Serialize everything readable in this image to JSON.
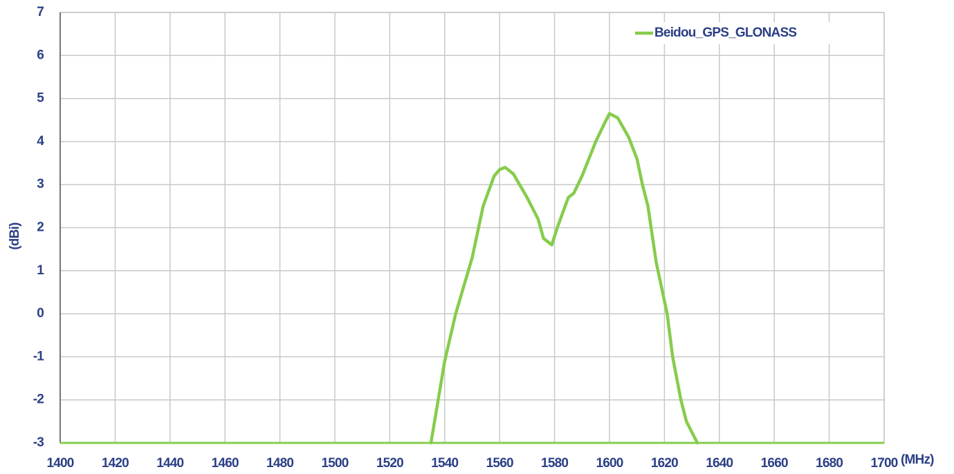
{
  "chart_data": {
    "type": "line",
    "x_label": "(MHz)",
    "y_label": "(dBi)",
    "xlim": [
      1400,
      1700
    ],
    "xticks": [
      1400,
      1420,
      1440,
      1460,
      1480,
      1500,
      1520,
      1540,
      1560,
      1580,
      1600,
      1620,
      1640,
      1660,
      1680,
      1700
    ],
    "ylim": [
      -3,
      7
    ],
    "yticks": [
      -3,
      -2,
      -1,
      0,
      1,
      2,
      3,
      4,
      5,
      6,
      7
    ],
    "grid": true,
    "legend": "upper right",
    "series": [
      {
        "name": "Beidou_GPS_GLONASS",
        "color": "#86cc4c",
        "x": [
          1535,
          1540,
          1544,
          1550,
          1554,
          1558,
          1560,
          1562,
          1565,
          1570,
          1574,
          1576,
          1579,
          1581,
          1585,
          1587,
          1590,
          1595,
          1598,
          1600,
          1603,
          1607,
          1610,
          1612,
          1614,
          1617,
          1621,
          1623,
          1626,
          1628,
          1632
        ],
        "values": [
          -3,
          -1.1,
          0,
          1.3,
          2.5,
          3.2,
          3.35,
          3.4,
          3.25,
          2.7,
          2.2,
          1.75,
          1.6,
          2.0,
          2.7,
          2.8,
          3.2,
          4.0,
          4.4,
          4.65,
          4.55,
          4.1,
          3.6,
          3.0,
          2.5,
          1.2,
          0,
          -1,
          -2,
          -2.5,
          -3
        ]
      }
    ]
  }
}
